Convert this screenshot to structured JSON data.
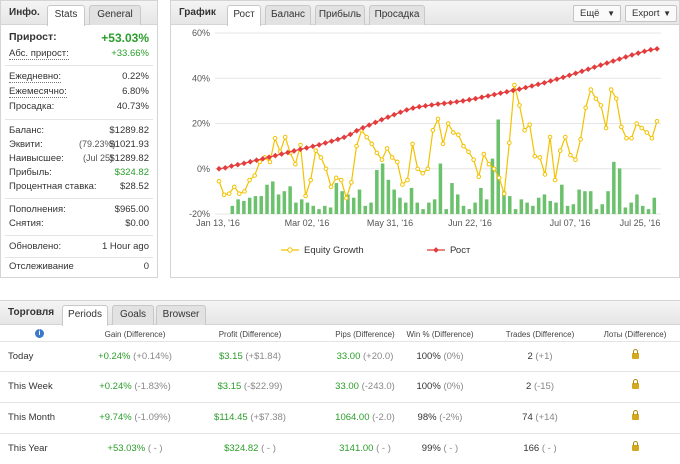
{
  "info": {
    "title": "Инфо.",
    "tabs": [
      "Stats",
      "General"
    ],
    "rows": [
      {
        "key": "gain",
        "label": "Прирост:",
        "value": "+53.03%"
      },
      {
        "key": "abs_gain",
        "label": "Абс. прирост:",
        "value": "+33.66%"
      },
      {
        "key": "daily",
        "label": "Ежедневно:",
        "value": "0.22%"
      },
      {
        "key": "monthly",
        "label": "Ежемесячно:",
        "value": "6.80%"
      },
      {
        "key": "drawdown",
        "label": "Просадка:",
        "value": "40.73%"
      },
      {
        "key": "balance",
        "label": "Баланс:",
        "value": "$1289.82"
      },
      {
        "key": "equity",
        "label": "Эквити:",
        "mid": "(79.23%)",
        "value": "$1021.93"
      },
      {
        "key": "highest",
        "label": "Наивысшее:",
        "mid": "(Jul 25)",
        "value": "$1289.82"
      },
      {
        "key": "profit",
        "label": "Прибыль:",
        "value": "$324.82"
      },
      {
        "key": "interest",
        "label": "Процентная ставка:",
        "value": "$28.52"
      },
      {
        "key": "deposits",
        "label": "Пополнения:",
        "value": "$965.00"
      },
      {
        "key": "withdrawals",
        "label": "Снятия:",
        "value": "$0.00"
      },
      {
        "key": "updated",
        "label": "Обновлено:",
        "value": "1 Hour ago"
      },
      {
        "key": "tracking",
        "label": "Отслеживание",
        "value": "0"
      }
    ]
  },
  "chart_panel": {
    "title": "График",
    "tabs": [
      "Рост",
      "Баланс",
      "Прибыль",
      "Просадка"
    ],
    "more_label": "Ещё",
    "export_label": "Export"
  },
  "chart_data": {
    "type": "line",
    "title": "",
    "y_ticks": [
      "60%",
      "40%",
      "20%",
      "0%",
      "-20%"
    ],
    "ylim": [
      -20,
      60
    ],
    "x_tick_labels": [
      "Jan 13, '16",
      "Mar 02, '16",
      "May 31, '16",
      "Jun 22, '16",
      "Jul 07, '16",
      "Jul 25, '16"
    ],
    "legend": [
      "Equity Growth",
      "Рост"
    ],
    "colors": {
      "equity": "#f2c200",
      "growth": "#e43c3c",
      "bars": "#6cc16c",
      "grid": "#e6e6e6"
    },
    "series": [
      {
        "name": "Рост",
        "values": [
          0,
          0.4,
          1.2,
          1.8,
          2.4,
          3.1,
          3.8,
          4.4,
          5.1,
          5.8,
          6.5,
          7.2,
          7.9,
          8.6,
          9.2,
          9.9,
          10.6,
          11.4,
          12.2,
          13.0,
          13.9,
          15.2,
          16.8,
          18.1,
          19.3,
          20.5,
          21.7,
          22.8,
          23.9,
          25.0,
          26.0,
          26.8,
          27.4,
          27.8,
          28.2,
          28.6,
          28.9,
          29.2,
          29.6,
          30.0,
          30.5,
          31.0,
          31.6,
          32.2,
          32.8,
          33.4,
          34.0,
          34.6,
          35.2,
          35.9,
          36.6,
          37.3,
          38.0,
          38.8,
          39.6,
          40.4,
          41.3,
          42.2,
          43.1,
          44.0,
          44.9,
          45.8,
          46.7,
          47.6,
          48.5,
          49.4,
          50.3,
          51.1,
          51.9,
          52.6,
          53.0
        ]
      },
      {
        "name": "Equity Growth",
        "values": [
          -5.5,
          -11.5,
          -11.0,
          -8.0,
          -11.0,
          -10.0,
          -5.0,
          -3.0,
          3.0,
          5.0,
          3.0,
          13.5,
          7.5,
          14.0,
          7.0,
          2.0,
          10.5,
          -12.0,
          -5.0,
          8.0,
          5.0,
          0.0,
          -8.0,
          -4.0,
          -5.0,
          -13.0,
          -6.0,
          10.0,
          17.0,
          14.0,
          11.0,
          7.0,
          4.0,
          9.0,
          5.0,
          3.0,
          -7.0,
          -5.0,
          11.0,
          0.0,
          -2.0,
          0.0,
          17.0,
          22.0,
          11.0,
          20.0,
          16.0,
          15.0,
          10.0,
          7.5,
          4.0,
          -3.5,
          6.5,
          2.0,
          0.0,
          -4.0,
          -11.0,
          11.5,
          37.0,
          28.0,
          17.0,
          19.5,
          5.5,
          5.0,
          -2.5,
          14.0,
          -5.0,
          8.0,
          14.0,
          6.0,
          4.0,
          13.0,
          27.0,
          35.0,
          31.0,
          28.0,
          18.0,
          35.0,
          31.0,
          18.5,
          13.5,
          13.5,
          20.0,
          18.0,
          16.0,
          13.5,
          21.0
        ]
      },
      {
        "name": "bars",
        "values": [
          0,
          0,
          5,
          9,
          8,
          10,
          11,
          11,
          18,
          20,
          12,
          14,
          17,
          7,
          9,
          7,
          5,
          3,
          5,
          4,
          19,
          14,
          12,
          10,
          15,
          5,
          7,
          27,
          31,
          21,
          15,
          10,
          7,
          16,
          7,
          3,
          7,
          9,
          31,
          3,
          19,
          12,
          5,
          3,
          7,
          16,
          9,
          34,
          58,
          14,
          11,
          3,
          9,
          7,
          5,
          10,
          12,
          8,
          7,
          18,
          5,
          6,
          15,
          14,
          14,
          3,
          6,
          14,
          32,
          28,
          4,
          7,
          12,
          5,
          3,
          10
        ]
      }
    ]
  },
  "trade": {
    "title": "Торговля",
    "tabs": [
      "Periods",
      "Goals",
      "Browser"
    ],
    "headers": [
      "Gain (Difference)",
      "Profit (Difference)",
      "Pips (Difference)",
      "Win % (Difference)",
      "Trades (Difference)",
      "Лоты (Difference)"
    ],
    "rows": [
      {
        "period": "Today",
        "gain": "+0.24%",
        "gain_d": "(+0.14%)",
        "profit": "$3.15",
        "profit_d": "(+$1.84)",
        "pips": "33.00",
        "pips_d": "(+20.0)",
        "win": "100%",
        "win_d": "(0%)",
        "trades": "2",
        "trades_d": "(+1)"
      },
      {
        "period": "This Week",
        "gain": "+0.24%",
        "gain_d": "(-1.83%)",
        "profit": "$3.15",
        "profit_d": "(-$22.99)",
        "pips": "33.00",
        "pips_d": "(-243.0)",
        "win": "100%",
        "win_d": "(0%)",
        "trades": "2",
        "trades_d": "(-15)"
      },
      {
        "period": "This Month",
        "gain": "+9.74%",
        "gain_d": "(-1.09%)",
        "profit": "$114.45",
        "profit_d": "(+$7.38)",
        "pips": "1064.00",
        "pips_d": "(-2.0)",
        "win": "98%",
        "win_d": "(-2%)",
        "trades": "74",
        "trades_d": "(+14)"
      },
      {
        "period": "This Year",
        "gain": "+53.03%",
        "gain_d": "( - )",
        "profit": "$324.82",
        "profit_d": "( - )",
        "pips": "3141.00",
        "pips_d": "( - )",
        "win": "99%",
        "win_d": "( - )",
        "trades": "166",
        "trades_d": "( - )"
      }
    ]
  }
}
